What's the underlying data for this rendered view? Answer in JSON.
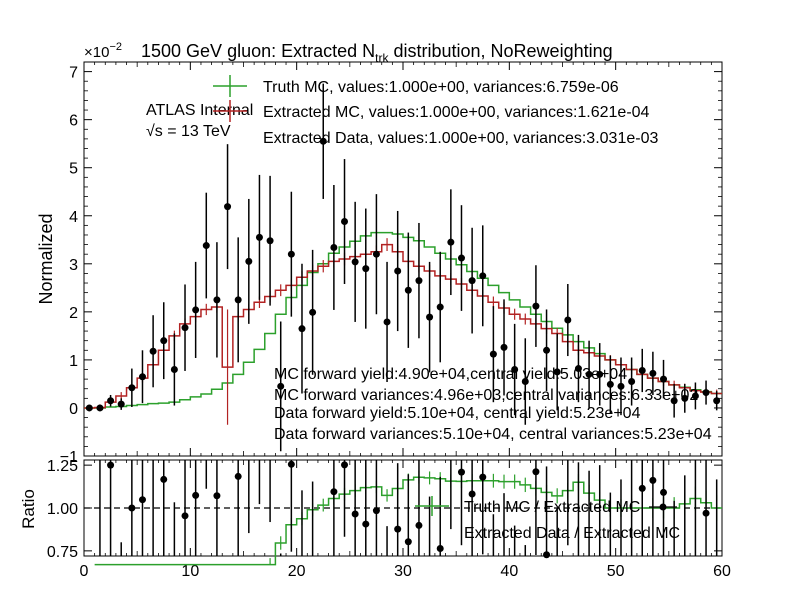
{
  "chart_data": {
    "type": "line",
    "title": "1500 GeV gluon: Extracted N",
    "title_sub": "trk",
    "title_suffix": " distribution, NoReweighting",
    "exponent_base": "×10",
    "exponent_power": "−2",
    "ylabel": "Normalized",
    "ratio_ylabel": "Ratio",
    "xlim": [
      0,
      60
    ],
    "ylim": [
      -1,
      7.2
    ],
    "ratio_ylim": [
      0.72,
      1.28
    ],
    "x_ticks": [
      "0",
      "10",
      "20",
      "30",
      "40",
      "50",
      "60"
    ],
    "y_ticks": [
      "−1",
      "0",
      "1",
      "2",
      "3",
      "4",
      "5",
      "6",
      "7"
    ],
    "ratio_y_ticks": [
      "0.75",
      "1.00",
      "1.25"
    ],
    "atlas_label": "ATLAS Internal",
    "energy_label": "√s = 13 TeV",
    "legend": [
      "Truth MC, values:1.000e+00, variances:6.759e-06",
      "Extracted MC, values:1.000e+00, variances:1.621e-04",
      "Extracted Data, values:1.000e+00, variances:3.031e-03"
    ],
    "ratio_legend": [
      "Truth MC / Extracted MC",
      "Extracted Data / Extracted MC"
    ],
    "annotations": [
      "MC forward yield:4.90e+04,central yield:5.03e+04",
      "MC forward variances:4.96e+03,central variances:6.33e+02",
      "Data forward yield:5.10e+04, central yield:5.23e+04",
      "Data forward variances:5.10e+04, central variances:5.23e+04"
    ],
    "colors": {
      "truth": "#2ca02c",
      "mc": "#b22222",
      "data": "#000000"
    },
    "bin_edges": [
      0,
      1,
      2,
      3,
      4,
      5,
      6,
      7,
      8,
      9,
      10,
      11,
      12,
      13,
      14,
      15,
      16,
      17,
      18,
      19,
      20,
      21,
      22,
      23,
      24,
      25,
      26,
      27,
      28,
      29,
      30,
      31,
      32,
      33,
      34,
      35,
      36,
      37,
      38,
      39,
      40,
      41,
      42,
      43,
      44,
      45,
      46,
      47,
      48,
      49,
      50,
      51,
      52,
      53,
      54,
      55,
      56,
      57,
      58,
      59,
      60
    ],
    "series": [
      {
        "name": "Truth MC",
        "values": [
          0.0,
          0.0,
          0.02,
          0.03,
          0.05,
          0.07,
          0.09,
          0.1,
          0.12,
          0.17,
          0.23,
          0.29,
          0.39,
          0.52,
          0.7,
          0.95,
          1.22,
          1.55,
          1.95,
          2.3,
          2.55,
          2.82,
          3.0,
          3.22,
          3.35,
          3.47,
          3.58,
          3.65,
          3.65,
          3.62,
          3.55,
          3.48,
          3.35,
          3.22,
          3.1,
          2.98,
          2.84,
          2.7,
          2.55,
          2.4,
          2.25,
          2.1,
          1.95,
          1.8,
          1.66,
          1.52,
          1.38,
          1.25,
          1.13,
          1.0,
          0.9,
          0.8,
          0.7,
          0.62,
          0.55,
          0.48,
          0.43,
          0.38,
          0.34,
          0.3
        ]
      },
      {
        "name": "Extracted MC",
        "values": [
          0.0,
          0.01,
          0.12,
          0.25,
          0.42,
          0.62,
          0.9,
          1.2,
          1.5,
          1.75,
          1.9,
          2.05,
          2.1,
          0.85,
          1.9,
          2.05,
          2.2,
          2.32,
          2.45,
          2.55,
          2.72,
          2.85,
          2.95,
          3.05,
          3.1,
          3.15,
          3.2,
          3.25,
          3.4,
          3.25,
          3.05,
          2.95,
          2.85,
          2.75,
          2.68,
          2.58,
          2.45,
          2.33,
          2.2,
          2.08,
          1.95,
          1.85,
          1.75,
          1.65,
          1.55,
          1.38,
          1.2,
          1.15,
          1.08,
          1.0,
          0.9,
          0.8,
          0.7,
          0.62,
          0.55,
          0.48,
          0.42,
          0.36,
          0.33,
          0.3
        ]
      },
      {
        "name": "Extracted Data",
        "values": [
          0.0,
          0.0,
          0.15,
          0.08,
          0.42,
          0.65,
          1.18,
          1.4,
          0.8,
          1.67,
          2.04,
          3.38,
          2.25,
          4.19,
          2.25,
          3.05,
          3.55,
          3.48,
          0.45,
          3.2,
          1.65,
          1.99,
          5.55,
          3.34,
          3.88,
          3.04,
          2.9,
          3.2,
          1.79,
          2.85,
          2.45,
          2.65,
          1.89,
          2.1,
          3.45,
          3.12,
          2.65,
          2.75,
          1.12,
          1.26,
          0.8,
          0.55,
          2.12,
          1.2,
          0.75,
          1.83,
          0.82,
          0.7,
          0.7,
          0.49,
          0.45,
          0.55,
          0.78,
          0.72,
          0.6,
          0.15,
          0.2,
          0.25,
          0.32,
          0.15
        ],
        "errors": [
          0.02,
          0.02,
          0.12,
          0.12,
          0.4,
          0.55,
          0.75,
          0.8,
          0.75,
          0.9,
          1.0,
          1.1,
          1.2,
          1.3,
          1.3,
          1.3,
          1.3,
          1.35,
          1.35,
          1.3,
          1.35,
          1.3,
          1.2,
          1.3,
          1.3,
          1.25,
          1.25,
          1.25,
          1.25,
          1.25,
          1.2,
          1.2,
          1.15,
          1.15,
          1.1,
          1.1,
          1.1,
          1.05,
          1.0,
          1.0,
          0.95,
          0.9,
          0.85,
          0.85,
          0.8,
          0.75,
          0.7,
          0.7,
          0.65,
          0.6,
          0.6,
          0.5,
          0.45,
          0.45,
          0.4,
          0.35,
          0.3,
          0.28,
          0.25,
          0.2
        ]
      }
    ]
  }
}
